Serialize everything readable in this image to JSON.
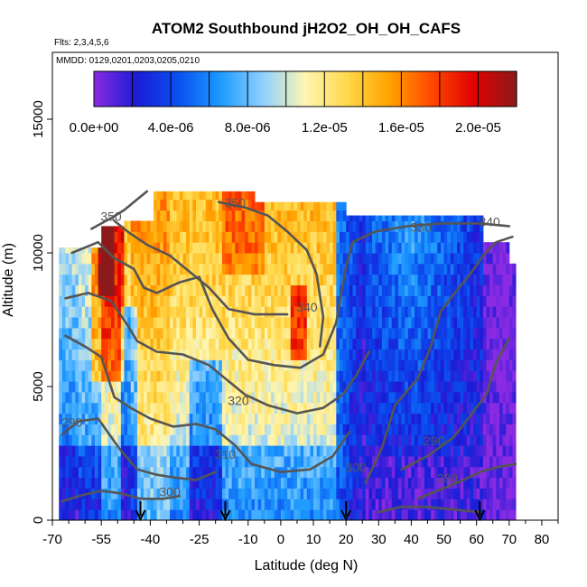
{
  "chart_data": {
    "type": "heatmap",
    "title": "ATOM2 Southbound jH2O2_OH_OH_CAFS",
    "flights_note": "Flts: 2,3,4,5,6",
    "dates_note": "MMDD: 0129,0201,0203,0205,0210",
    "xlabel": "Latitude (deg N)",
    "ylabel": "Altitude (m)",
    "xlim": [
      -70,
      85
    ],
    "ylim": [
      0,
      17500
    ],
    "x_ticks": [
      -70,
      -55,
      -40,
      -25,
      -10,
      0,
      10,
      20,
      30,
      40,
      50,
      60,
      70,
      80
    ],
    "x_tick_labels": [
      "-70",
      "-55",
      "-40",
      "-25",
      "-10",
      "0",
      "10",
      "20",
      "30",
      "40",
      "50",
      "60",
      "70",
      "80"
    ],
    "x_minor_ticks": [
      -65,
      -60,
      -50,
      -45,
      -35,
      -30,
      -20,
      -15,
      -5,
      5,
      15,
      25,
      35,
      45,
      55,
      65,
      75,
      85
    ],
    "y_ticks": [
      0,
      5000,
      10000,
      15000
    ],
    "y_tick_labels": [
      "0",
      "5000",
      "10000",
      "15000"
    ],
    "colorbar": {
      "range": [
        0,
        2.2e-05
      ],
      "tick_values": [
        0,
        4e-06,
        8e-06,
        1.2e-05,
        1.6e-05,
        2e-05
      ],
      "tick_labels": [
        "0.0e+00",
        "4.0e-06",
        "8.0e-06",
        "1.2e-05",
        "1.6e-05",
        "2.0e-05"
      ],
      "colors": [
        "#8a2be2",
        "#1b1bd6",
        "#0a50ef",
        "#1d9bff",
        "#8fd0ff",
        "#fff6b2",
        "#ffd84a",
        "#ffa200",
        "#ff4600",
        "#e00000",
        "#8b1a1a"
      ]
    },
    "contour_labels": [
      {
        "text": "350",
        "lat": -52,
        "alt": 11200
      },
      {
        "text": "350",
        "lat": -14,
        "alt": 11700
      },
      {
        "text": "330",
        "lat": 43,
        "alt": 10800
      },
      {
        "text": "340",
        "lat": 64,
        "alt": 11000
      },
      {
        "text": "340",
        "lat": 8,
        "alt": 7800
      },
      {
        "text": "320",
        "lat": -13,
        "alt": 4300
      },
      {
        "text": "310",
        "lat": -17,
        "alt": 2300
      },
      {
        "text": "300",
        "lat": -34,
        "alt": 900
      },
      {
        "text": "290",
        "lat": -64,
        "alt": 3500
      },
      {
        "text": "290",
        "lat": 47,
        "alt": 2800
      },
      {
        "text": "280",
        "lat": 51,
        "alt": 1400
      },
      {
        "text": "300",
        "lat": 23,
        "alt": 1800
      }
    ],
    "arrow_latitudes": [
      -43,
      -17,
      20,
      61
    ]
  }
}
